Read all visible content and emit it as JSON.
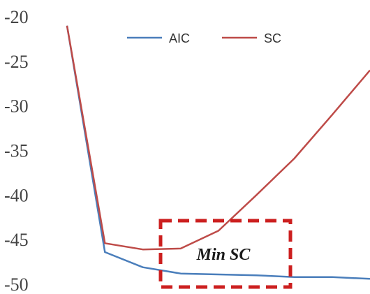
{
  "chart_data": {
    "type": "line",
    "title": "",
    "xlabel": "",
    "ylabel": "",
    "x": [
      1,
      2,
      3,
      4,
      5,
      6,
      7,
      8,
      9
    ],
    "ylim": [
      -50,
      -20
    ],
    "yticks": [
      -20,
      -25,
      -30,
      -35,
      -40,
      -45,
      -50
    ],
    "legend_position": "top-center",
    "series": [
      {
        "name": "AIC",
        "color": "#4a7ebb",
        "values": [
          -21,
          -46.4,
          -48.1,
          -48.8,
          -48.9,
          -49.0,
          -49.2,
          -49.2,
          -49.4
        ]
      },
      {
        "name": "SC",
        "color": "#be4b48",
        "values": [
          -21,
          -45.4,
          -46.1,
          -46.0,
          -44.0,
          -40.0,
          -35.9,
          -31.0,
          -26.0
        ]
      }
    ],
    "annotations": [
      {
        "text": "Min SC",
        "style": "dashed-box",
        "color": "#cc1f1f"
      }
    ]
  }
}
